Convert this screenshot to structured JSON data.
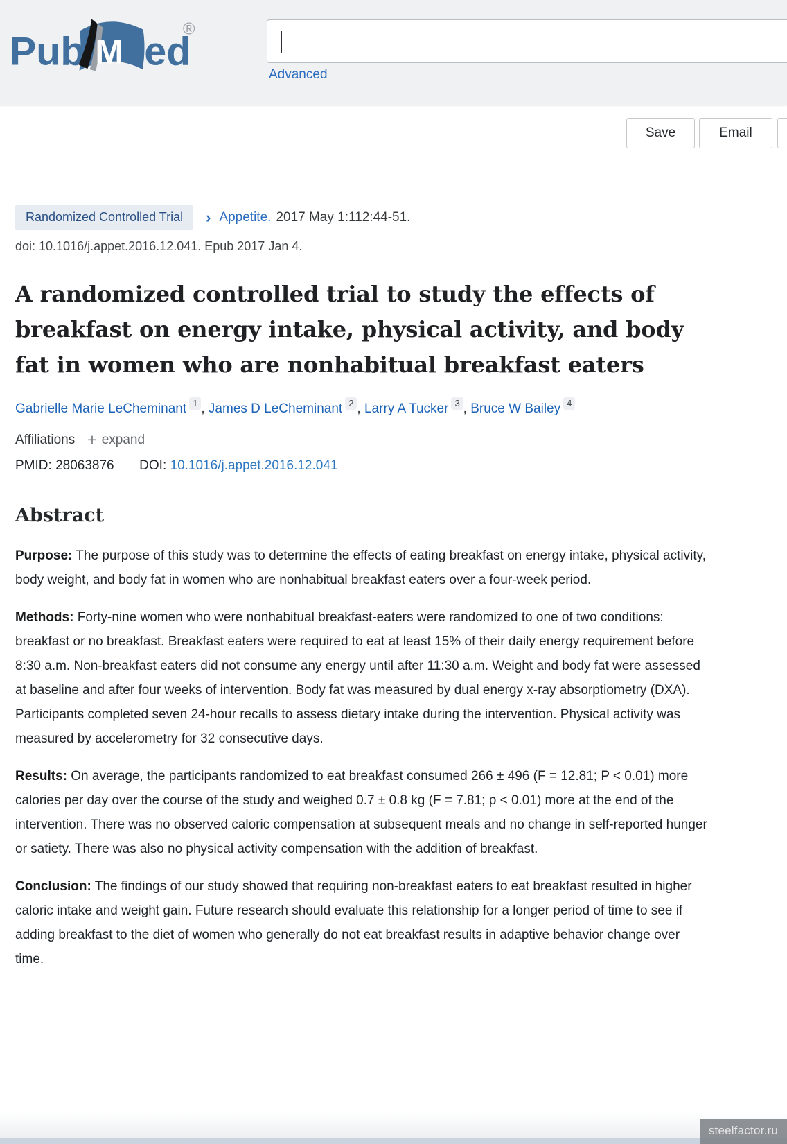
{
  "header": {
    "logo_text_pub": "Pub",
    "logo_text_m": "M",
    "logo_text_ed": "ed",
    "logo_registered": "®",
    "search_value": "",
    "advanced_label": "Advanced"
  },
  "toolbar": {
    "save_label": "Save",
    "email_label": "Email"
  },
  "article": {
    "publication_type": "Randomized Controlled Trial",
    "journal": "Appetite.",
    "citation_date": "2017 May 1:112:44-51.",
    "doi_line": "doi: 10.1016/j.appet.2016.12.041. Epub 2017 Jan 4.",
    "title": "A randomized controlled trial to study the effects of breakfast on energy intake, physical activity, and body fat in women who are nonhabitual breakfast eaters",
    "authors": [
      {
        "name": "Gabrielle Marie LeCheminant",
        "sup": "1"
      },
      {
        "name": "James D LeCheminant",
        "sup": "2"
      },
      {
        "name": "Larry A Tucker",
        "sup": "3"
      },
      {
        "name": "Bruce W Bailey",
        "sup": "4"
      }
    ],
    "affiliations_label": "Affiliations",
    "expand_label": "expand",
    "pmid_label": "PMID:",
    "pmid": "28063876",
    "doi_label": "DOI:",
    "doi": "10.1016/j.appet.2016.12.041"
  },
  "abstract": {
    "heading": "Abstract",
    "sections": [
      {
        "label": "Purpose:",
        "text": "The purpose of this study was to determine the effects of eating breakfast on energy intake, physical activity, body weight, and body fat in women who are nonhabitual breakfast eaters over a four-week period."
      },
      {
        "label": "Methods:",
        "text": "Forty-nine women who were nonhabitual breakfast-eaters were randomized to one of two conditions: breakfast or no breakfast. Breakfast eaters were required to eat at least 15% of their daily energy requirement before 8:30 a.m. Non-breakfast eaters did not consume any energy until after 11:30 a.m. Weight and body fat were assessed at baseline and after four weeks of intervention. Body fat was measured by dual energy x-ray absorptiometry (DXA). Participants completed seven 24-hour recalls to assess dietary intake during the intervention. Physical activity was measured by accelerometry for 32 consecutive days."
      },
      {
        "label": "Results:",
        "text": "On average, the participants randomized to eat breakfast consumed 266 ± 496 (F = 12.81; P < 0.01) more calories per day over the course of the study and weighed 0.7 ± 0.8 kg (F = 7.81; p < 0.01) more at the end of the intervention. There was no observed caloric compensation at subsequent meals and no change in self-reported hunger or satiety. There was also no physical activity compensation with the addition of breakfast."
      },
      {
        "label": "Conclusion:",
        "text": "The findings of our study showed that requiring non-breakfast eaters to eat breakfast resulted in higher caloric intake and weight gain. Future research should evaluate this relationship for a longer period of time to see if adding breakfast to the diet of women who generally do not eat breakfast results in adaptive behavior change over time."
      }
    ]
  },
  "watermark": "steelfactor.ru",
  "colors": {
    "logo_blue": "#41709e",
    "link_blue": "#2b6dc0",
    "badge_bg": "#e7ecf3",
    "badge_text": "#2a4f82",
    "header_bg": "#f0f1f2",
    "top_strip": "#d2dde9",
    "bottom_strip": "#c9d4e0",
    "body_text": "#1f2429"
  }
}
